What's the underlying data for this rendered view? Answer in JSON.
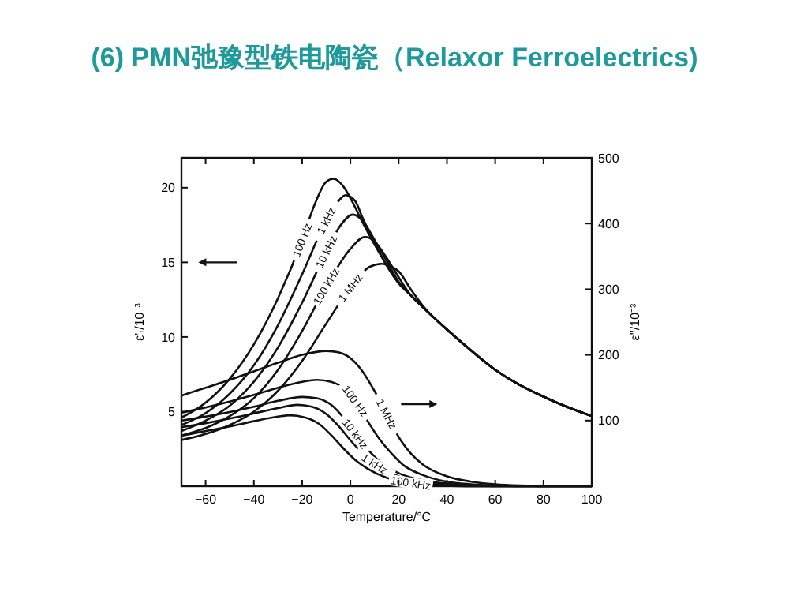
{
  "chart_data": {
    "type": "line",
    "title": "(6) PMN弛豫型铁电陶瓷（Relaxor Ferroelectrics)",
    "xlabel": "Temperature/°C",
    "ylabel": "ε'ᵣ/10⁻³",
    "y2label": "ε''/10⁻³",
    "xlim": [
      -70,
      100
    ],
    "xticks": [
      -60,
      -40,
      -20,
      0,
      20,
      40,
      60,
      80,
      100
    ],
    "ylim": [
      0,
      22
    ],
    "yticks": [
      5,
      10,
      15,
      20
    ],
    "y2lim": [
      0,
      500
    ],
    "y2ticks": [
      100,
      200,
      300,
      400,
      500
    ],
    "legend": false,
    "grid": false,
    "line_style": "solid",
    "marker": "none",
    "series": [
      {
        "name": "100 Hz",
        "color": "#111111",
        "axis": "y",
        "x": [
          -70,
          -60,
          -50,
          -40,
          -30,
          -20,
          -15,
          -10,
          -7,
          -3,
          0,
          5,
          10,
          20,
          25,
          30,
          40,
          50,
          60,
          70,
          80,
          90,
          100
        ],
        "values": [
          4.6,
          5.6,
          7.2,
          9.5,
          12.6,
          16.5,
          18.8,
          20.4,
          20.6,
          20.1,
          19.3,
          17.7,
          16.2,
          13.6,
          12.8,
          12.0,
          10.5,
          9.1,
          7.8,
          6.8,
          6.0,
          5.3,
          4.7
        ]
      },
      {
        "name": "1 kHz",
        "color": "#111111",
        "axis": "y",
        "x": [
          -70,
          -60,
          -50,
          -40,
          -30,
          -20,
          -10,
          -5,
          -2,
          2,
          5,
          10,
          20,
          25,
          30,
          40,
          50,
          60,
          70,
          80,
          90,
          100
        ],
        "values": [
          4.1,
          4.9,
          6.2,
          8.1,
          10.8,
          14.2,
          17.8,
          19.1,
          19.5,
          19.1,
          18.0,
          16.3,
          13.6,
          12.8,
          12.0,
          10.5,
          9.1,
          7.8,
          6.8,
          6.0,
          5.3,
          4.7
        ]
      },
      {
        "name": "10 kHz",
        "color": "#111111",
        "axis": "y",
        "x": [
          -70,
          -60,
          -50,
          -40,
          -30,
          -20,
          -10,
          -4,
          1,
          5,
          10,
          15,
          20,
          25,
          30,
          40,
          50,
          60,
          70,
          80,
          90,
          100
        ],
        "values": [
          3.7,
          4.4,
          5.4,
          7.0,
          9.3,
          12.3,
          15.7,
          17.5,
          18.2,
          17.8,
          16.5,
          15.1,
          13.7,
          12.8,
          12.0,
          10.5,
          9.1,
          7.8,
          6.8,
          6.0,
          5.3,
          4.7
        ]
      },
      {
        "name": "100 kHz",
        "color": "#111111",
        "axis": "y",
        "x": [
          -70,
          -60,
          -50,
          -40,
          -30,
          -20,
          -10,
          0,
          6,
          10,
          15,
          20,
          25,
          30,
          40,
          50,
          60,
          70,
          80,
          90,
          100
        ],
        "values": [
          3.4,
          3.9,
          4.7,
          5.9,
          7.8,
          10.4,
          13.4,
          15.9,
          16.7,
          16.4,
          15.3,
          14.0,
          12.8,
          12.0,
          10.5,
          9.1,
          7.8,
          6.8,
          6.0,
          5.3,
          4.7
        ]
      },
      {
        "name": "1 MHz",
        "color": "#111111",
        "axis": "y",
        "x": [
          -70,
          -60,
          -50,
          -40,
          -30,
          -20,
          -10,
          0,
          8,
          13,
          17,
          20,
          25,
          30,
          40,
          50,
          60,
          70,
          80,
          90,
          100
        ],
        "values": [
          3.1,
          3.5,
          4.1,
          5.0,
          6.4,
          8.4,
          10.9,
          13.3,
          14.7,
          14.9,
          14.7,
          14.4,
          13.2,
          12.1,
          10.5,
          9.1,
          7.8,
          6.8,
          6.0,
          5.3,
          4.7
        ]
      },
      {
        "name": "1 MHz",
        "color": "#111111",
        "axis": "y2",
        "x": [
          -70,
          -60,
          -50,
          -40,
          -30,
          -20,
          -10,
          -5,
          0,
          5,
          10,
          15,
          20,
          25,
          30,
          40,
          50,
          60,
          70,
          80,
          90,
          100
        ],
        "values": [
          138,
          150,
          162,
          175,
          188,
          200,
          206,
          204,
          195,
          175,
          145,
          110,
          75,
          50,
          33,
          15,
          7,
          3,
          1,
          0,
          0,
          0
        ]
      },
      {
        "name": "100 Hz",
        "color": "#111111",
        "axis": "y2",
        "x": [
          -70,
          -60,
          -50,
          -40,
          -30,
          -20,
          -14,
          -8,
          -3,
          2,
          7,
          12,
          17,
          22,
          30,
          40,
          50,
          60,
          70,
          100
        ],
        "values": [
          112,
          120,
          129,
          139,
          150,
          159,
          162,
          159,
          150,
          130,
          100,
          72,
          50,
          32,
          17,
          7,
          3,
          1,
          0,
          0
        ]
      },
      {
        "name": "10 kHz",
        "color": "#111111",
        "axis": "y2",
        "x": [
          -70,
          -60,
          -50,
          -40,
          -30,
          -20,
          -14,
          -8,
          -3,
          2,
          7,
          12,
          20,
          30,
          40,
          50,
          60,
          100
        ],
        "values": [
          100,
          106,
          113,
          121,
          130,
          136,
          134,
          124,
          105,
          80,
          57,
          38,
          20,
          9,
          4,
          1,
          0,
          0
        ]
      },
      {
        "name": "1 kHz",
        "color": "#111111",
        "axis": "y2",
        "x": [
          -70,
          -60,
          -50,
          -40,
          -30,
          -22,
          -16,
          -10,
          -5,
          0,
          5,
          10,
          20,
          30,
          40,
          50,
          100
        ],
        "values": [
          90,
          96,
          103,
          111,
          119,
          124,
          121,
          110,
          92,
          70,
          50,
          34,
          15,
          6,
          2,
          0,
          0
        ]
      },
      {
        "name": "100 kHz",
        "color": "#111111",
        "axis": "y2",
        "x": [
          -70,
          -60,
          -50,
          -40,
          -30,
          -25,
          -19,
          -13,
          -8,
          -3,
          2,
          7,
          15,
          25,
          35,
          45,
          100
        ],
        "values": [
          77,
          84,
          91,
          99,
          106,
          108,
          105,
          95,
          78,
          58,
          40,
          27,
          13,
          5,
          2,
          0,
          0
        ]
      }
    ]
  }
}
